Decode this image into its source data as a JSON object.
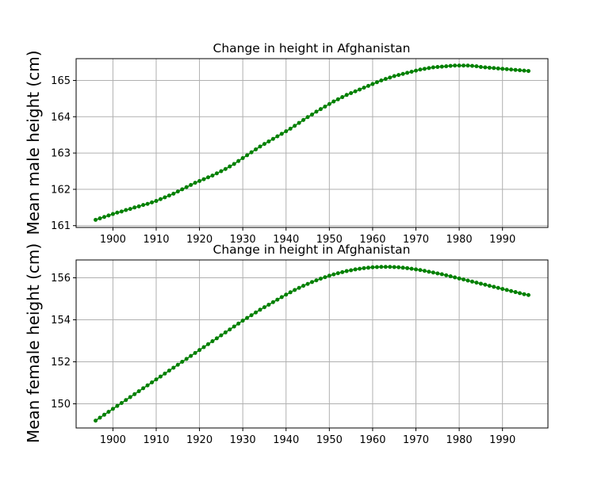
{
  "chart_data": [
    {
      "type": "line",
      "title": "Change in height in Afghanistan",
      "ylabel": "Mean male height (cm)",
      "xlabel": "",
      "xlim": [
        1891.5,
        2000.5
      ],
      "ylim": [
        160.95,
        165.6
      ],
      "xticks": [
        1900,
        1910,
        1920,
        1930,
        1940,
        1950,
        1960,
        1970,
        1980,
        1990
      ],
      "yticks": [
        161,
        162,
        163,
        164,
        165
      ],
      "grid": true,
      "color": "#008000",
      "marker": "circle",
      "series": [
        {
          "x": [
            1896,
            1897,
            1898,
            1899,
            1900,
            1901,
            1902,
            1903,
            1904,
            1905,
            1906,
            1907,
            1908,
            1909,
            1910,
            1911,
            1912,
            1913,
            1914,
            1915,
            1916,
            1917,
            1918,
            1919,
            1920,
            1921,
            1922,
            1923,
            1924,
            1925,
            1926,
            1927,
            1928,
            1929,
            1930,
            1931,
            1932,
            1933,
            1934,
            1935,
            1936,
            1937,
            1938,
            1939,
            1940,
            1941,
            1942,
            1943,
            1944,
            1945,
            1946,
            1947,
            1948,
            1949,
            1950,
            1951,
            1952,
            1953,
            1954,
            1955,
            1956,
            1957,
            1958,
            1959,
            1960,
            1961,
            1962,
            1963,
            1964,
            1965,
            1966,
            1967,
            1968,
            1969,
            1970,
            1971,
            1972,
            1973,
            1974,
            1975,
            1976,
            1977,
            1978,
            1979,
            1980,
            1981,
            1982,
            1983,
            1984,
            1985,
            1986,
            1987,
            1988,
            1989,
            1990,
            1991,
            1992,
            1993,
            1994,
            1995,
            1996
          ],
          "values": [
            161.16,
            161.2,
            161.24,
            161.28,
            161.32,
            161.36,
            161.39,
            161.43,
            161.46,
            161.5,
            161.53,
            161.57,
            161.6,
            161.64,
            161.68,
            161.73,
            161.78,
            161.83,
            161.88,
            161.94,
            162.0,
            162.06,
            162.12,
            162.18,
            162.23,
            162.28,
            162.33,
            162.38,
            162.44,
            162.5,
            162.56,
            162.63,
            162.7,
            162.78,
            162.86,
            162.94,
            163.02,
            163.1,
            163.18,
            163.25,
            163.32,
            163.39,
            163.46,
            163.53,
            163.6,
            163.67,
            163.75,
            163.83,
            163.91,
            163.99,
            164.06,
            164.14,
            164.21,
            164.28,
            164.35,
            164.42,
            164.48,
            164.54,
            164.6,
            164.65,
            164.7,
            164.75,
            164.8,
            164.85,
            164.9,
            164.95,
            165.0,
            165.04,
            165.08,
            165.12,
            165.15,
            165.18,
            165.21,
            165.24,
            165.27,
            165.3,
            165.32,
            165.34,
            165.36,
            165.37,
            165.38,
            165.39,
            165.4,
            165.41,
            165.41,
            165.41,
            165.41,
            165.4,
            165.39,
            165.37,
            165.36,
            165.35,
            165.34,
            165.33,
            165.32,
            165.31,
            165.3,
            165.29,
            165.28,
            165.27,
            165.26
          ]
        }
      ]
    },
    {
      "type": "line",
      "title": "Change in height in Afghanistan",
      "ylabel": "Mean female height (cm)",
      "xlabel": "",
      "xlim": [
        1891.5,
        2000.5
      ],
      "ylim": [
        148.85,
        156.85
      ],
      "xticks": [
        1900,
        1910,
        1920,
        1930,
        1940,
        1950,
        1960,
        1970,
        1980,
        1990
      ],
      "yticks": [
        150,
        152,
        154,
        156
      ],
      "grid": true,
      "color": "#008000",
      "marker": "circle",
      "series": [
        {
          "x": [
            1896,
            1897,
            1898,
            1899,
            1900,
            1901,
            1902,
            1903,
            1904,
            1905,
            1906,
            1907,
            1908,
            1909,
            1910,
            1911,
            1912,
            1913,
            1914,
            1915,
            1916,
            1917,
            1918,
            1919,
            1920,
            1921,
            1922,
            1923,
            1924,
            1925,
            1926,
            1927,
            1928,
            1929,
            1930,
            1931,
            1932,
            1933,
            1934,
            1935,
            1936,
            1937,
            1938,
            1939,
            1940,
            1941,
            1942,
            1943,
            1944,
            1945,
            1946,
            1947,
            1948,
            1949,
            1950,
            1951,
            1952,
            1953,
            1954,
            1955,
            1956,
            1957,
            1958,
            1959,
            1960,
            1961,
            1962,
            1963,
            1964,
            1965,
            1966,
            1967,
            1968,
            1969,
            1970,
            1971,
            1972,
            1973,
            1974,
            1975,
            1976,
            1977,
            1978,
            1979,
            1980,
            1981,
            1982,
            1983,
            1984,
            1985,
            1986,
            1987,
            1988,
            1989,
            1990,
            1991,
            1992,
            1993,
            1994,
            1995,
            1996
          ],
          "values": [
            149.2,
            149.34,
            149.48,
            149.62,
            149.76,
            149.9,
            150.04,
            150.18,
            150.32,
            150.46,
            150.6,
            150.74,
            150.88,
            151.02,
            151.16,
            151.3,
            151.44,
            151.58,
            151.72,
            151.86,
            152.0,
            152.14,
            152.28,
            152.42,
            152.56,
            152.7,
            152.84,
            152.98,
            153.12,
            153.26,
            153.4,
            153.54,
            153.68,
            153.82,
            153.96,
            154.09,
            154.22,
            154.35,
            154.48,
            154.6,
            154.72,
            154.84,
            154.96,
            155.08,
            155.2,
            155.31,
            155.42,
            155.52,
            155.62,
            155.71,
            155.8,
            155.88,
            155.96,
            156.03,
            156.1,
            156.16,
            156.22,
            156.27,
            156.32,
            156.36,
            156.4,
            156.43,
            156.46,
            156.48,
            156.5,
            156.51,
            156.52,
            156.52,
            156.52,
            156.51,
            156.5,
            156.48,
            156.46,
            156.43,
            156.4,
            156.37,
            156.33,
            156.29,
            156.25,
            156.21,
            156.17,
            156.12,
            156.07,
            156.02,
            155.97,
            155.92,
            155.87,
            155.82,
            155.77,
            155.72,
            155.67,
            155.62,
            155.57,
            155.52,
            155.47,
            155.42,
            155.37,
            155.32,
            155.27,
            155.22,
            155.18
          ]
        }
      ]
    }
  ]
}
